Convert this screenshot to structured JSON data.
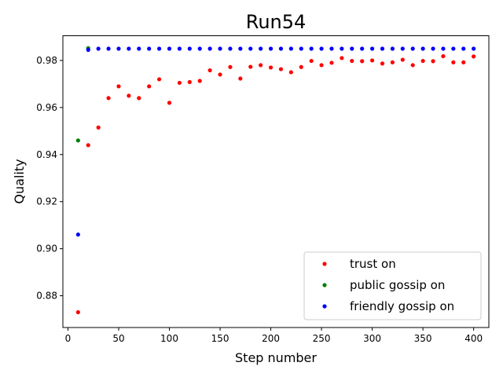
{
  "chart_data": {
    "type": "scatter",
    "title": "Run54",
    "xlabel": "Step number",
    "ylabel": "Quality",
    "xlim": [
      -5,
      415
    ],
    "ylim": [
      0.8665,
      0.9905
    ],
    "xticks": [
      0,
      50,
      100,
      150,
      200,
      250,
      300,
      350,
      400
    ],
    "yticks": [
      0.88,
      0.9,
      0.92,
      0.94,
      0.96,
      0.98
    ],
    "ytick_labels": [
      "0.88",
      "0.90",
      "0.92",
      "0.94",
      "0.96",
      "0.98"
    ],
    "grid": false,
    "legend_position": "lower-right",
    "series": [
      {
        "name": "trust on",
        "color": "#ff0000",
        "points": [
          [
            10,
            0.873
          ],
          [
            20,
            0.944
          ],
          [
            30,
            0.9515
          ],
          [
            40,
            0.964
          ],
          [
            50,
            0.969
          ],
          [
            60,
            0.965
          ],
          [
            70,
            0.964
          ],
          [
            80,
            0.969
          ],
          [
            90,
            0.972
          ],
          [
            100,
            0.962
          ],
          [
            110,
            0.9705
          ],
          [
            120,
            0.9708
          ],
          [
            130,
            0.9713
          ],
          [
            140,
            0.9758
          ],
          [
            150,
            0.974
          ],
          [
            160,
            0.9772
          ],
          [
            170,
            0.9723
          ],
          [
            180,
            0.9773
          ],
          [
            190,
            0.978
          ],
          [
            200,
            0.977
          ],
          [
            210,
            0.9763
          ],
          [
            220,
            0.975
          ],
          [
            230,
            0.9772
          ],
          [
            240,
            0.9798
          ],
          [
            250,
            0.978
          ],
          [
            260,
            0.979
          ],
          [
            270,
            0.981
          ],
          [
            280,
            0.9798
          ],
          [
            290,
            0.9797
          ],
          [
            300,
            0.98
          ],
          [
            310,
            0.9787
          ],
          [
            320,
            0.9792
          ],
          [
            330,
            0.9803
          ],
          [
            340,
            0.978
          ],
          [
            350,
            0.9798
          ],
          [
            360,
            0.9797
          ],
          [
            370,
            0.9818
          ],
          [
            380,
            0.9792
          ],
          [
            390,
            0.9792
          ],
          [
            400,
            0.9817
          ]
        ]
      },
      {
        "name": "public gossip on",
        "color": "#008000",
        "points": [
          [
            10,
            0.946
          ],
          [
            20,
            0.9852
          ]
        ]
      },
      {
        "name": "friendly gossip on",
        "color": "#0000ff",
        "points": [
          [
            10,
            0.906
          ],
          [
            20,
            0.9845
          ],
          [
            30,
            0.985
          ],
          [
            40,
            0.985
          ],
          [
            50,
            0.985
          ],
          [
            60,
            0.985
          ],
          [
            70,
            0.985
          ],
          [
            80,
            0.985
          ],
          [
            90,
            0.985
          ],
          [
            100,
            0.985
          ],
          [
            110,
            0.985
          ],
          [
            120,
            0.985
          ],
          [
            130,
            0.985
          ],
          [
            140,
            0.985
          ],
          [
            150,
            0.985
          ],
          [
            160,
            0.985
          ],
          [
            170,
            0.985
          ],
          [
            180,
            0.985
          ],
          [
            190,
            0.985
          ],
          [
            200,
            0.985
          ],
          [
            210,
            0.985
          ],
          [
            220,
            0.985
          ],
          [
            230,
            0.985
          ],
          [
            240,
            0.985
          ],
          [
            250,
            0.985
          ],
          [
            260,
            0.985
          ],
          [
            270,
            0.985
          ],
          [
            280,
            0.985
          ],
          [
            290,
            0.985
          ],
          [
            300,
            0.985
          ],
          [
            310,
            0.985
          ],
          [
            320,
            0.985
          ],
          [
            330,
            0.985
          ],
          [
            340,
            0.985
          ],
          [
            350,
            0.985
          ],
          [
            360,
            0.985
          ],
          [
            370,
            0.985
          ],
          [
            380,
            0.985
          ],
          [
            390,
            0.985
          ],
          [
            400,
            0.985
          ]
        ]
      }
    ]
  }
}
